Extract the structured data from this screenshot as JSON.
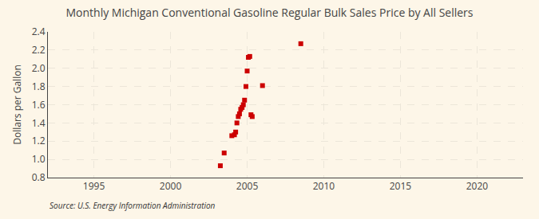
{
  "chart_data": {
    "type": "scatter",
    "title": "Monthly Michigan Conventional Gasoline Regular Bulk Sales Price by All Sellers",
    "ylabel": "Dollars per Gallon",
    "annotations": [
      "Source: U.S. Energy Information Administration"
    ],
    "x": [
      2003.25,
      2003.5,
      2004.0,
      2004.17,
      2004.25,
      2004.33,
      2004.42,
      2004.5,
      2004.58,
      2004.67,
      2004.75,
      2004.83,
      2004.92,
      2005.0,
      2005.08,
      2005.17,
      2005.25,
      2005.33,
      2006.0,
      2008.5
    ],
    "values": [
      0.93,
      1.07,
      1.26,
      1.27,
      1.3,
      1.4,
      1.47,
      1.5,
      1.55,
      1.57,
      1.6,
      1.65,
      1.8,
      1.97,
      2.12,
      2.13,
      1.49,
      1.47,
      1.81,
      2.27
    ],
    "color": "#cc0000",
    "marker": "square",
    "xlim": [
      1992,
      2023
    ],
    "ylim": [
      0.8,
      2.4
    ],
    "xticks": [
      1995,
      2000,
      2005,
      2010,
      2015,
      2020
    ],
    "yticks": [
      0.8,
      {
        "value": 1,
        "label": "1.0"
      },
      1.2,
      1.4,
      1.6,
      1.8,
      {
        "value": 2,
        "label": "2.0"
      },
      2.2,
      2.4
    ],
    "grid": true
  }
}
